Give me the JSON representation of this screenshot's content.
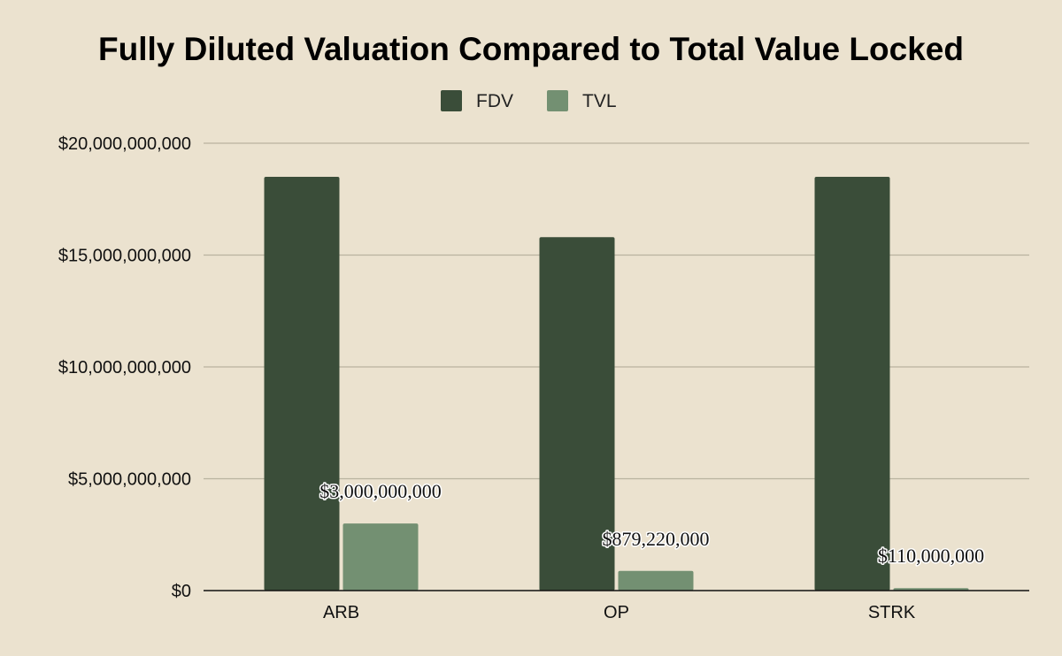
{
  "chart_data": {
    "type": "bar",
    "title": "Fully Diluted Valuation Compared to Total Value Locked",
    "categories": [
      "ARB",
      "OP",
      "STRK"
    ],
    "series": [
      {
        "name": "FDV",
        "color": "#3a4d39",
        "values": [
          18500000000,
          15800000000,
          18500000000
        ],
        "data_labels": [
          "",
          "",
          ""
        ]
      },
      {
        "name": "TVL",
        "color": "#739072",
        "values": [
          3000000000,
          879220000,
          110000000
        ],
        "data_labels": [
          "$3,000,000,000",
          "$879,220,000",
          "$110,000,000"
        ]
      }
    ],
    "ylim": [
      0,
      20000000000
    ],
    "yticks": [
      0,
      5000000000,
      10000000000,
      15000000000,
      20000000000
    ],
    "ytick_labels": [
      "$0",
      "$5,000,000,000",
      "$10,000,000,000",
      "$15,000,000,000",
      "$20,000,000,000"
    ],
    "xlabel": "",
    "ylabel": "",
    "grid": true,
    "legend_position": "top-center",
    "background_color": "#ebe2cf"
  }
}
